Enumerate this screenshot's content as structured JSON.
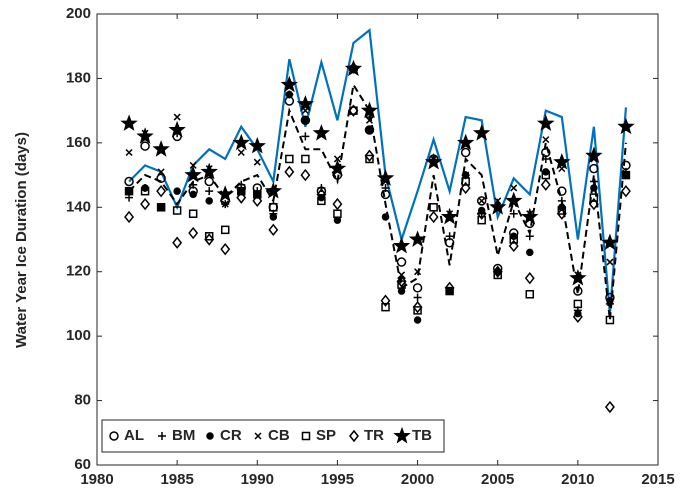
{
  "chart_data": {
    "type": "scatter",
    "ylabel": "Water Year Ice Duration (days)",
    "x": [
      1982,
      1983,
      1984,
      1985,
      1986,
      1987,
      1988,
      1989,
      1990,
      1991,
      1992,
      1993,
      1994,
      1995,
      1996,
      1997,
      1998,
      1999,
      2000,
      2001,
      2002,
      2003,
      2004,
      2005,
      2006,
      2007,
      2008,
      2009,
      2010,
      2011,
      2012,
      2013
    ],
    "xlim": [
      1980,
      2015
    ],
    "xticks": [
      1980,
      1985,
      1990,
      1995,
      2000,
      2005,
      2010,
      2015
    ],
    "ylim": [
      60,
      200
    ],
    "yticks": [
      60,
      80,
      100,
      120,
      140,
      160,
      180,
      200
    ],
    "legend": "lower left",
    "series": [
      {
        "name": "AL",
        "marker": "circle",
        "color": "#000000",
        "values": [
          148,
          159,
          149,
          162,
          145,
          148,
          142,
          146,
          146,
          140,
          173,
          167,
          145,
          150,
          183,
          164,
          144,
          123,
          115,
          155,
          129,
          157,
          142,
          121,
          132,
          135,
          157,
          145,
          114,
          152,
          112,
          153
        ]
      },
      {
        "name": "BM",
        "marker": "plus",
        "color": "#000000",
        "values": [
          143,
          146,
          140,
          163,
          147,
          145,
          141,
          147,
          145,
          138,
          175,
          162,
          146,
          152,
          183,
          168,
          146,
          118,
          112,
          154,
          131,
          150,
          138,
          120,
          138,
          131,
          155,
          142,
          108,
          148,
          110,
          151
        ]
      },
      {
        "name": "CR",
        "marker": "dot",
        "color": "#000000",
        "values": [
          145,
          146,
          140,
          145,
          144,
          142,
          144,
          145,
          144,
          137,
          175,
          167,
          143,
          136,
          183,
          164,
          137,
          114,
          105,
          154,
          114,
          150,
          139,
          120,
          131,
          126,
          151,
          140,
          107,
          146,
          111,
          150
        ]
      },
      {
        "name": "CB",
        "marker": "x",
        "color": "#000000",
        "values": [
          157,
          163,
          151,
          168,
          153,
          152,
          141,
          157,
          154,
          145,
          178,
          170,
          163,
          155,
          183,
          167,
          148,
          119,
          120,
          155,
          138,
          150,
          142,
          142,
          146,
          138,
          161,
          152,
          119,
          155,
          123,
          165
        ]
      },
      {
        "name": "SP",
        "marker": "square",
        "color": "#000000",
        "values": [
          145,
          145,
          140,
          139,
          138,
          131,
          133,
          145,
          144,
          140,
          155,
          155,
          142,
          138,
          170,
          155,
          109,
          116,
          108,
          140,
          114,
          148,
          136,
          119,
          130,
          113,
          150,
          139,
          110,
          143,
          105,
          150
        ]
      },
      {
        "name": "TR",
        "marker": "diamond",
        "color": "#000000",
        "values": [
          137,
          141,
          145,
          129,
          132,
          130,
          127,
          143,
          142,
          133,
          151,
          150,
          144,
          141,
          170,
          156,
          111,
          117,
          109,
          137,
          115,
          146,
          138,
          120,
          128,
          118,
          147,
          138,
          106,
          141,
          78,
          145
        ]
      },
      {
        "name": "TB",
        "marker": "star",
        "color": "#000000",
        "values": [
          166,
          162,
          158,
          164,
          150,
          151,
          144,
          160,
          159,
          145,
          178,
          172,
          163,
          152,
          183,
          170,
          149,
          128,
          130,
          154,
          137,
          160,
          163,
          140,
          142,
          137,
          166,
          154,
          118,
          156,
          129,
          165
        ]
      }
    ],
    "lines": [
      {
        "color": "#0072bd",
        "style": "solid",
        "values": [
          148,
          153,
          151,
          140,
          153,
          158,
          155,
          165,
          158,
          148,
          186,
          165,
          185,
          167,
          191,
          195,
          150,
          130,
          145,
          161,
          145,
          168,
          167,
          137,
          149,
          144,
          170,
          168,
          130,
          165,
          107,
          171
        ]
      },
      {
        "color": "#000000",
        "style": "dashed",
        "values": [
          145,
          150,
          148,
          141,
          148,
          150,
          143,
          148,
          150,
          142,
          170,
          158,
          158,
          148,
          178,
          170,
          141,
          115,
          118,
          150,
          122,
          155,
          150,
          125,
          142,
          132,
          160,
          142,
          113,
          150,
          105,
          160
        ]
      }
    ]
  }
}
